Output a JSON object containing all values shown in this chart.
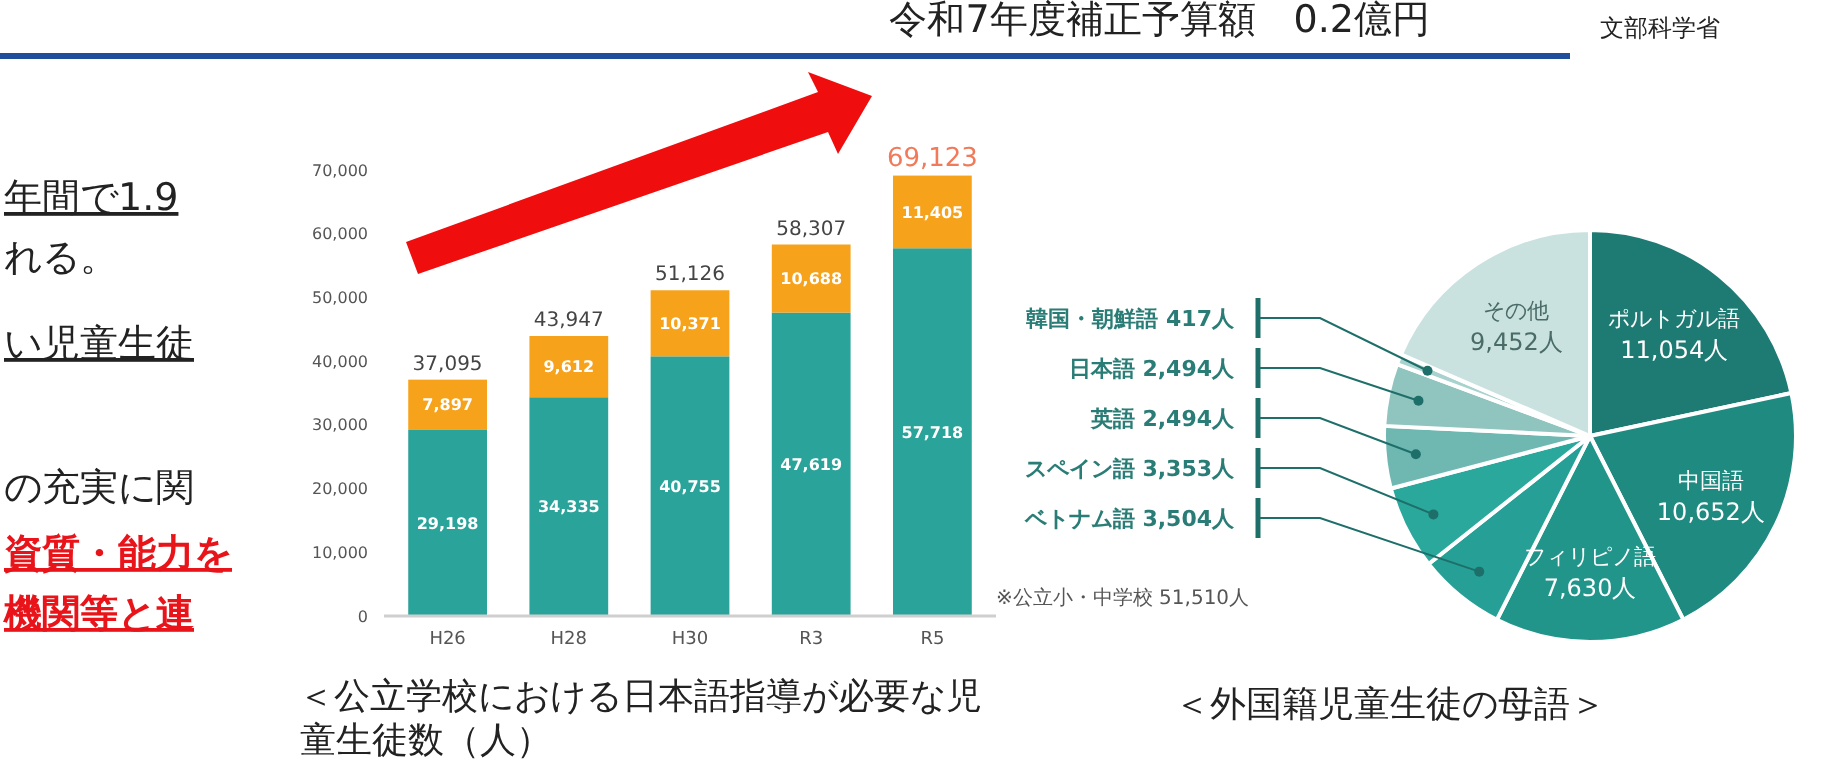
{
  "chart_data": [
    {
      "type": "other",
      "annotations": [
        "令和7年度補正予算額　0.2億円",
        "文部科学省",
        "年間で1.9",
        "れる。",
        "い児童生徒",
        "の充実に関",
        "資質・能力を",
        "機関等と連"
      ]
    },
    {
      "type": "bar",
      "title": "＜公立学校における日本語指導が必要な児童生徒数（人）",
      "categories": [
        "H26",
        "H28",
        "H30",
        "R3",
        "R5"
      ],
      "stacked": true,
      "series": [
        {
          "color": "#2aa39a",
          "values": [
            29198,
            34335,
            40755,
            47619,
            57718
          ],
          "value_labels": [
            "29,198",
            "34,335",
            "40,755",
            "47,619",
            "57,718"
          ]
        },
        {
          "color": "#f7a21b",
          "values": [
            7897,
            9612,
            10371,
            10688,
            11405
          ],
          "value_labels": [
            "7,897",
            "9,612",
            "10,371",
            "10,688",
            "11,405"
          ]
        }
      ],
      "totals": [
        "37,095",
        "43,947",
        "51,126",
        "58,307",
        "69,123"
      ],
      "grid": false,
      "ylim": [
        0,
        70000
      ],
      "yticks": [
        0,
        {
          "value": 10000,
          "label": "10,000"
        },
        {
          "value": 20000,
          "label": "20,000"
        },
        {
          "value": 30000,
          "label": "30,000"
        },
        {
          "value": 40000,
          "label": "40,000"
        },
        {
          "value": 50000,
          "label": "50,000"
        },
        {
          "value": 60000,
          "label": "60,000"
        },
        {
          "value": 70000,
          "label": "70,000"
        }
      ]
    },
    {
      "type": "pie",
      "title": "＜外国籍児童生徒の母語＞",
      "categories": [
        "ポルトガル語",
        "中国語",
        "フィリピノ語",
        "ベトナム語",
        "スペイン語",
        "英語",
        "日本語",
        "韓国・朝鮮語",
        "その他"
      ],
      "values": [
        11054,
        10652,
        7630,
        3504,
        3353,
        2494,
        2494,
        417,
        9452
      ],
      "value_labels": [
        "11,054人",
        "10,652人",
        "7,630人",
        "3,504人",
        "3,353人",
        "2,494人",
        "2,494人",
        "417人",
        "9,452人"
      ],
      "colors": [
        "#1e7b74",
        "#1f8a80",
        "#22958a",
        "#26a096",
        "#2aa89c",
        "#6fb8b2",
        "#8fc4bf",
        "#a8d2ce",
        "#c9e2df"
      ],
      "annotations": [
        "※公立小・中学校 51,510人"
      ]
    }
  ]
}
